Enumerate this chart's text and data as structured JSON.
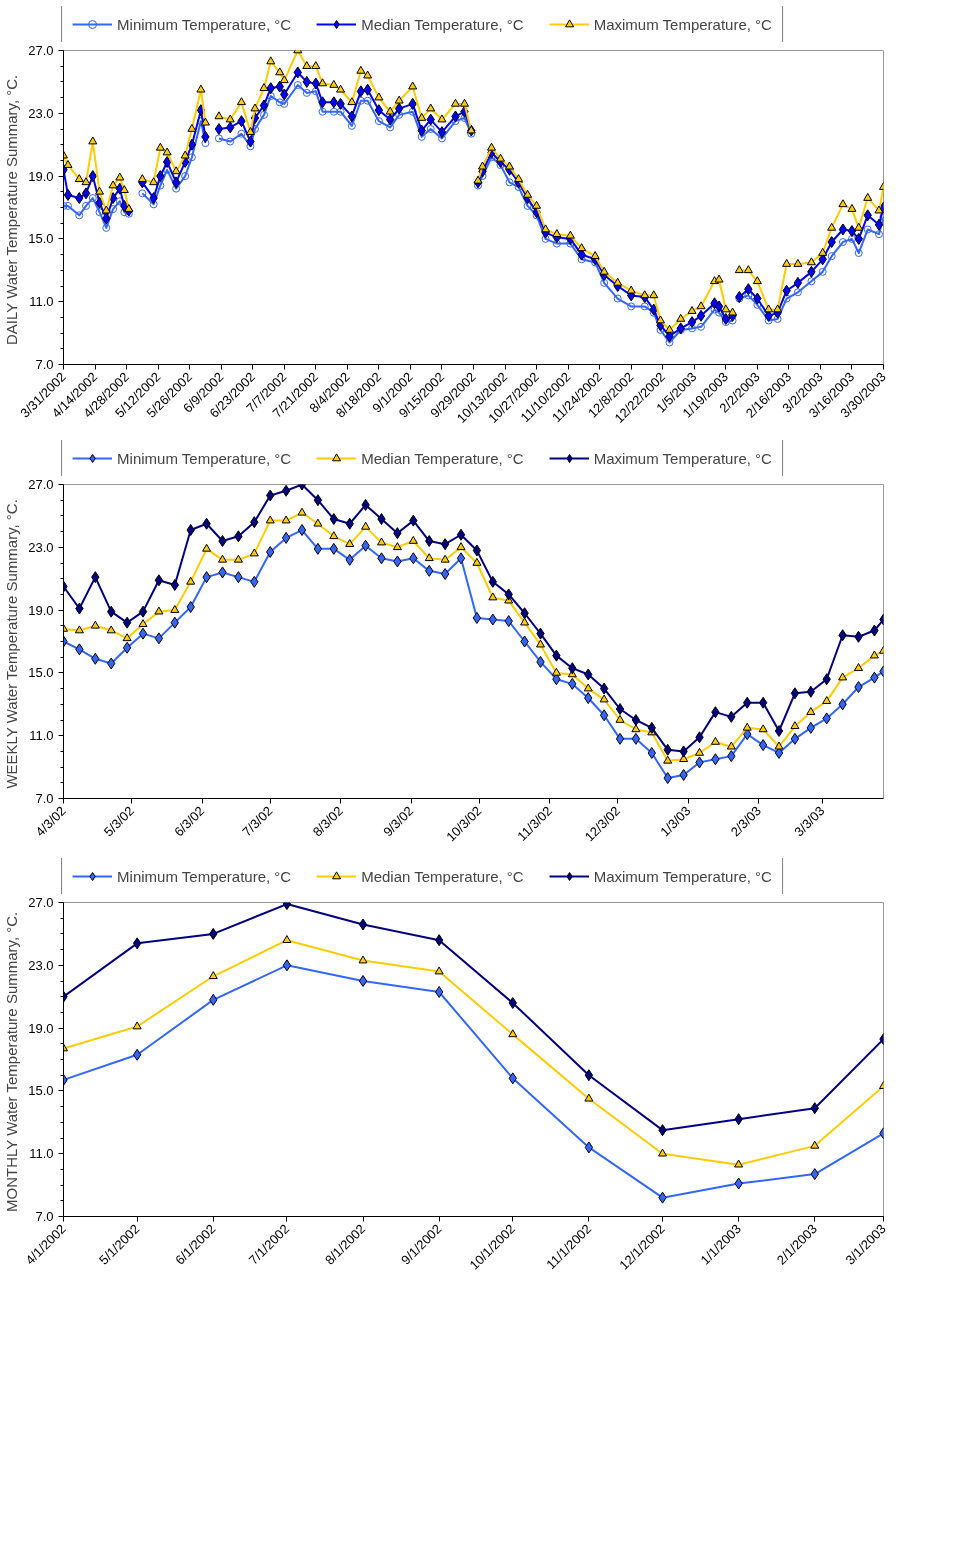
{
  "chart_data": [
    {
      "type": "line",
      "ylabel": "DAILY  Water Temperature Summary, °C.",
      "legend": "top",
      "grid": false,
      "x": [
        "2002-03-31",
        "2002-04-02",
        "2002-04-07",
        "2002-04-10",
        "2002-04-13",
        "2002-04-16",
        "2002-04-19",
        "2002-04-22",
        "2002-04-25",
        "2002-04-27",
        "2002-04-29",
        "2002-05-02",
        "2002-05-05",
        "2002-05-10",
        "2002-05-13",
        "2002-05-16",
        "2002-05-20",
        "2002-05-24",
        "2002-05-27",
        "2002-05-31",
        "2002-06-02",
        "2002-06-05",
        "2002-06-08",
        "2002-06-13",
        "2002-06-18",
        "2002-06-22",
        "2002-06-24",
        "2002-06-28",
        "2002-07-01",
        "2002-07-05",
        "2002-07-07",
        "2002-07-13",
        "2002-07-17",
        "2002-07-21",
        "2002-07-24",
        "2002-07-29",
        "2002-08-01",
        "2002-08-06",
        "2002-08-10",
        "2002-08-13",
        "2002-08-18",
        "2002-08-23",
        "2002-08-27",
        "2002-09-02",
        "2002-09-06",
        "2002-09-10",
        "2002-09-15",
        "2002-09-21",
        "2002-09-25",
        "2002-09-28",
        "2002-09-30",
        "2002-10-01",
        "2002-10-03",
        "2002-10-07",
        "2002-10-11",
        "2002-10-15",
        "2002-10-19",
        "2002-10-23",
        "2002-10-27",
        "2002-10-31",
        "2002-11-05",
        "2002-11-11",
        "2002-11-16",
        "2002-11-22",
        "2002-11-26",
        "2002-12-02",
        "2002-12-08",
        "2002-12-14",
        "2002-12-18",
        "2002-12-21",
        "2002-12-25",
        "2002-12-30",
        "2003-01-04",
        "2003-01-08",
        "2003-01-14",
        "2003-01-16",
        "2003-01-19",
        "2003-01-22",
        "2003-01-23",
        "2003-01-25",
        "2003-01-29",
        "2003-02-02",
        "2003-02-07",
        "2003-02-11",
        "2003-02-15",
        "2003-02-20",
        "2003-02-26",
        "2003-03-03",
        "2003-03-07",
        "2003-03-12",
        "2003-03-16",
        "2003-03-19",
        "2003-03-23",
        "2003-03-28",
        "2003-03-30"
      ],
      "series": [
        {
          "name": "Minimum Temperature, °C",
          "color": "#3366ff",
          "marker": "circle",
          "values": [
            17.1,
            17.1,
            16.5,
            17.1,
            17.6,
            16.7,
            15.7,
            16.9,
            17.4,
            16.7,
            16.6,
            null,
            17.9,
            17.2,
            18.4,
            19.4,
            18.2,
            19.0,
            20.2,
            22.5,
            21.1,
            null,
            21.4,
            21.2,
            21.7,
            20.9,
            22.0,
            22.9,
            24.1,
            23.7,
            23.6,
            24.8,
            24.3,
            24.4,
            23.1,
            23.1,
            23.1,
            22.2,
            23.8,
            23.8,
            22.5,
            22.1,
            22.9,
            23.1,
            21.5,
            22.0,
            21.4,
            22.5,
            22.7,
            21.7,
            null,
            18.4,
            19.0,
            20.2,
            19.7,
            18.6,
            18.3,
            17.1,
            16.5,
            15.0,
            14.7,
            14.7,
            13.7,
            13.5,
            12.2,
            11.2,
            10.7,
            10.7,
            10.3,
            9.2,
            8.4,
            9.2,
            9.3,
            9.4,
            10.5,
            10.3,
            9.7,
            9.8,
            null,
            11.2,
            11.4,
            10.8,
            9.8,
            9.9,
            11.2,
            11.6,
            12.3,
            12.9,
            13.9,
            14.8,
            15.0,
            14.1,
            15.6,
            15.3,
            16.4
          ]
        },
        {
          "name": "Median Temperature, °C",
          "color": "#0000ff",
          "marker": "diamond",
          "values": [
            19.4,
            17.8,
            17.6,
            17.9,
            19.0,
            17.3,
            16.3,
            17.6,
            18.2,
            17.1,
            16.8,
            null,
            18.6,
            17.6,
            19.0,
            19.9,
            18.6,
            19.9,
            21.0,
            23.2,
            21.5,
            null,
            22.0,
            22.1,
            22.5,
            21.2,
            22.7,
            23.5,
            24.6,
            24.7,
            24.2,
            25.6,
            25.0,
            24.9,
            23.7,
            23.7,
            23.6,
            22.8,
            24.4,
            24.5,
            23.2,
            22.6,
            23.3,
            23.6,
            21.9,
            22.6,
            21.8,
            22.8,
            23.1,
            21.9,
            null,
            18.6,
            19.3,
            20.5,
            19.9,
            19.4,
            18.6,
            17.6,
            16.7,
            15.4,
            15.1,
            15.0,
            14.0,
            13.7,
            12.7,
            12.0,
            11.4,
            11.3,
            10.5,
            9.5,
            8.8,
            9.3,
            9.7,
            10.1,
            10.9,
            10.7,
            9.9,
            10.1,
            null,
            11.3,
            11.8,
            11.2,
            10.1,
            10.3,
            11.7,
            12.2,
            12.9,
            13.7,
            14.8,
            15.6,
            15.5,
            15.0,
            16.5,
            15.9,
            17.0
          ]
        },
        {
          "name": "Maximum Temperature, °C",
          "color": "#ffcc00",
          "marker": "triangle",
          "values": [
            20.3,
            19.7,
            18.8,
            18.6,
            21.2,
            18.0,
            16.8,
            18.4,
            18.9,
            18.1,
            16.9,
            null,
            18.8,
            18.6,
            20.8,
            20.5,
            19.3,
            20.3,
            22.0,
            24.5,
            22.4,
            null,
            22.8,
            22.6,
            23.7,
            21.8,
            23.3,
            24.6,
            26.3,
            25.6,
            25.1,
            27.0,
            26.0,
            26.0,
            24.9,
            24.8,
            24.5,
            23.7,
            25.7,
            25.4,
            24.0,
            23.1,
            23.8,
            24.7,
            22.7,
            23.3,
            22.6,
            23.6,
            23.6,
            21.9,
            null,
            18.7,
            19.6,
            20.8,
            20.1,
            19.6,
            18.8,
            17.8,
            17.1,
            15.6,
            15.3,
            15.2,
            14.4,
            13.9,
            12.9,
            12.2,
            11.7,
            11.4,
            11.4,
            9.8,
            9.2,
            9.9,
            10.4,
            10.7,
            12.3,
            12.4,
            10.5,
            10.3,
            null,
            13.0,
            13.0,
            12.3,
            10.5,
            10.5,
            13.4,
            13.4,
            13.5,
            14.1,
            15.7,
            17.2,
            16.9,
            15.7,
            17.6,
            16.8,
            18.3
          ]
        }
      ],
      "ylim": [
        7,
        27
      ],
      "yticks": [
        {
          "value": 7,
          "label": "7.0"
        },
        {
          "value": 11,
          "label": "11.0"
        },
        {
          "value": 15,
          "label": "15.0"
        },
        {
          "value": 19,
          "label": "19.0"
        },
        {
          "value": 23,
          "label": "23.0"
        },
        {
          "value": 27,
          "label": "27.0"
        }
      ],
      "xlim": [
        "2002-03-31",
        "2003-03-30"
      ],
      "xticks": [
        {
          "value": "2002-03-31",
          "label": "3/31/2002"
        },
        {
          "value": "2002-04-14",
          "label": "4/14/2002"
        },
        {
          "value": "2002-04-28",
          "label": "4/28/2002"
        },
        {
          "value": "2002-05-12",
          "label": "5/12/2002"
        },
        {
          "value": "2002-05-26",
          "label": "5/26/2002"
        },
        {
          "value": "2002-06-09",
          "label": "6/9/2002"
        },
        {
          "value": "2002-06-23",
          "label": "6/23/2002"
        },
        {
          "value": "2002-07-07",
          "label": "7/7/2002"
        },
        {
          "value": "2002-07-21",
          "label": "7/21/2002"
        },
        {
          "value": "2002-08-04",
          "label": "8/4/2002"
        },
        {
          "value": "2002-08-18",
          "label": "8/18/2002"
        },
        {
          "value": "2002-09-01",
          "label": "9/1/2002"
        },
        {
          "value": "2002-09-15",
          "label": "9/15/2002"
        },
        {
          "value": "2002-09-29",
          "label": "9/29/2002"
        },
        {
          "value": "2002-10-13",
          "label": "10/13/2002"
        },
        {
          "value": "2002-10-27",
          "label": "10/27/2002"
        },
        {
          "value": "2002-11-10",
          "label": "11/10/2002"
        },
        {
          "value": "2002-11-24",
          "label": "11/24/2002"
        },
        {
          "value": "2002-12-08",
          "label": "12/8/2002"
        },
        {
          "value": "2002-12-22",
          "label": "12/22/2002"
        },
        {
          "value": "2003-01-05",
          "label": "1/5/2003"
        },
        {
          "value": "2003-01-19",
          "label": "1/19/2003"
        },
        {
          "value": "2003-02-02",
          "label": "2/2/2003"
        },
        {
          "value": "2003-02-16",
          "label": "2/16/2003"
        },
        {
          "value": "2003-03-02",
          "label": "3/2/2003"
        },
        {
          "value": "2003-03-16",
          "label": "3/16/2003"
        },
        {
          "value": "2003-03-30",
          "label": "3/30/2003"
        }
      ]
    },
    {
      "type": "line",
      "ylabel": "WEEKLY  Water Temperature Summary, °C.",
      "legend": "top",
      "grid": false,
      "x": [
        "2002-04-03",
        "2002-04-10",
        "2002-04-17",
        "2002-04-24",
        "2002-05-01",
        "2002-05-08",
        "2002-05-15",
        "2002-05-22",
        "2002-05-29",
        "2002-06-05",
        "2002-06-12",
        "2002-06-19",
        "2002-06-26",
        "2002-07-03",
        "2002-07-10",
        "2002-07-17",
        "2002-07-24",
        "2002-07-31",
        "2002-08-07",
        "2002-08-14",
        "2002-08-21",
        "2002-08-28",
        "2002-09-04",
        "2002-09-11",
        "2002-09-18",
        "2002-09-25",
        "2002-10-02",
        "2002-10-09",
        "2002-10-16",
        "2002-10-23",
        "2002-10-30",
        "2002-11-06",
        "2002-11-13",
        "2002-11-20",
        "2002-11-27",
        "2002-12-04",
        "2002-12-11",
        "2002-12-18",
        "2002-12-25",
        "2003-01-01",
        "2003-01-08",
        "2003-01-15",
        "2003-01-22",
        "2003-01-29",
        "2003-02-05",
        "2003-02-12",
        "2003-02-19",
        "2003-02-26",
        "2003-03-05",
        "2003-03-12",
        "2003-03-19",
        "2003-03-26",
        "2003-03-30"
      ],
      "series": [
        {
          "name": "Minimum Temperature, °C",
          "color": "#3366ff",
          "marker": "diamond",
          "values": [
            17.0,
            16.5,
            15.9,
            15.6,
            16.6,
            17.5,
            17.2,
            18.2,
            19.2,
            21.1,
            21.4,
            21.1,
            20.8,
            22.7,
            23.6,
            24.1,
            22.9,
            22.9,
            22.2,
            23.1,
            22.3,
            22.1,
            22.3,
            21.5,
            21.3,
            22.3,
            18.5,
            18.4,
            18.3,
            17.0,
            15.7,
            14.6,
            14.3,
            13.4,
            12.3,
            10.8,
            10.8,
            9.9,
            8.3,
            8.5,
            9.3,
            9.5,
            9.7,
            11.1,
            10.4,
            9.9,
            10.8,
            11.5,
            12.1,
            13.0,
            14.1,
            14.7,
            15.1
          ]
        },
        {
          "name": "Median Temperature, °C",
          "color": "#ffcc00",
          "marker": "triangle",
          "values": [
            17.8,
            17.7,
            18.0,
            17.7,
            17.2,
            18.1,
            18.9,
            19.0,
            20.8,
            22.9,
            22.2,
            22.2,
            22.6,
            24.7,
            24.7,
            25.2,
            24.5,
            23.7,
            23.2,
            24.3,
            23.3,
            23.0,
            23.4,
            22.3,
            22.2,
            23.0,
            22.0,
            19.8,
            19.6,
            18.2,
            16.8,
            15.0,
            14.9,
            14.0,
            13.3,
            12.0,
            11.4,
            11.2,
            9.4,
            9.5,
            9.9,
            10.6,
            10.3,
            11.5,
            11.4,
            10.3,
            11.6,
            12.5,
            13.2,
            14.7,
            15.3,
            16.1,
            16.4
          ]
        },
        {
          "name": "Maximum Temperature, °C",
          "color": "#000080",
          "marker": "diamond",
          "values": [
            20.5,
            19.1,
            21.1,
            18.9,
            18.2,
            18.9,
            20.9,
            20.6,
            24.1,
            24.5,
            23.4,
            23.7,
            24.6,
            26.3,
            26.6,
            27.0,
            26.0,
            24.8,
            24.5,
            25.7,
            24.8,
            23.9,
            24.7,
            23.4,
            23.2,
            23.8,
            22.8,
            20.8,
            20.0,
            18.8,
            17.5,
            16.1,
            15.3,
            14.9,
            14.0,
            12.7,
            12.0,
            11.5,
            10.1,
            10.0,
            10.9,
            12.5,
            12.2,
            13.1,
            13.1,
            11.3,
            13.7,
            13.8,
            14.6,
            17.4,
            17.3,
            17.7,
            18.4
          ]
        }
      ],
      "ylim": [
        7,
        27
      ],
      "yticks": [
        {
          "value": 7,
          "label": "7.0"
        },
        {
          "value": 11,
          "label": "11.0"
        },
        {
          "value": 15,
          "label": "15.0"
        },
        {
          "value": 19,
          "label": "19.0"
        },
        {
          "value": 23,
          "label": "23.0"
        },
        {
          "value": 27,
          "label": "27.0"
        }
      ],
      "xlim": [
        "2002-04-03",
        "2003-03-30"
      ],
      "xticks": [
        {
          "value": "2002-04-03",
          "label": "4/3/02"
        },
        {
          "value": "2002-05-03",
          "label": "5/3/02"
        },
        {
          "value": "2002-06-03",
          "label": "6/3/02"
        },
        {
          "value": "2002-07-03",
          "label": "7/3/02"
        },
        {
          "value": "2002-08-03",
          "label": "8/3/02"
        },
        {
          "value": "2002-09-03",
          "label": "9/3/02"
        },
        {
          "value": "2002-10-03",
          "label": "10/3/02"
        },
        {
          "value": "2002-11-03",
          "label": "11/3/02"
        },
        {
          "value": "2002-12-03",
          "label": "12/3/02"
        },
        {
          "value": "2003-01-03",
          "label": "1/3/03"
        },
        {
          "value": "2003-02-03",
          "label": "2/3/03"
        },
        {
          "value": "2003-03-03",
          "label": "3/3/03"
        }
      ]
    },
    {
      "type": "line",
      "ylabel": "MONTHLY  Water Temperature Summary, °C.",
      "legend": "top",
      "grid": false,
      "x": [
        "2002-04-01",
        "2002-05-01",
        "2002-06-01",
        "2002-07-01",
        "2002-08-01",
        "2002-09-01",
        "2002-10-01",
        "2002-11-01",
        "2002-12-01",
        "2003-01-01",
        "2003-02-01",
        "2003-03-01"
      ],
      "series": [
        {
          "name": "Minimum Temperature, °C",
          "color": "#3366ff",
          "marker": "diamond",
          "values": [
            15.7,
            17.3,
            20.8,
            23.0,
            22.0,
            21.3,
            15.8,
            11.4,
            8.2,
            9.1,
            9.7,
            12.3
          ]
        },
        {
          "name": "Median Temperature, °C",
          "color": "#ffcc00",
          "marker": "triangle",
          "values": [
            17.7,
            19.1,
            22.3,
            24.6,
            23.3,
            22.6,
            18.6,
            14.5,
            11.0,
            10.3,
            11.5,
            15.3
          ]
        },
        {
          "name": "Maximum Temperature, °C",
          "color": "#000080",
          "marker": "diamond",
          "values": [
            21.0,
            24.4,
            25.0,
            26.9,
            25.6,
            24.6,
            20.6,
            16.0,
            12.5,
            13.2,
            13.9,
            18.3
          ]
        }
      ],
      "ylim": [
        7,
        27
      ],
      "yticks": [
        {
          "value": 7,
          "label": "7.0"
        },
        {
          "value": 11,
          "label": "11.0"
        },
        {
          "value": 15,
          "label": "15.0"
        },
        {
          "value": 19,
          "label": "19.0"
        },
        {
          "value": 23,
          "label": "23.0"
        },
        {
          "value": 27,
          "label": "27.0"
        }
      ],
      "xlim": [
        "2002-04-01",
        "2003-03-01"
      ],
      "xticks": [
        {
          "value": "2002-04-01",
          "label": "4/1/2002"
        },
        {
          "value": "2002-05-01",
          "label": "5/1/2002"
        },
        {
          "value": "2002-06-01",
          "label": "6/1/2002"
        },
        {
          "value": "2002-07-01",
          "label": "7/1/2002"
        },
        {
          "value": "2002-08-01",
          "label": "8/1/2002"
        },
        {
          "value": "2002-09-01",
          "label": "9/1/2002"
        },
        {
          "value": "2002-10-01",
          "label": "10/1/2002"
        },
        {
          "value": "2002-11-01",
          "label": "11/1/2002"
        },
        {
          "value": "2002-12-01",
          "label": "12/1/2002"
        },
        {
          "value": "2003-01-01",
          "label": "1/1/2003"
        },
        {
          "value": "2003-02-01",
          "label": "2/1/2003"
        },
        {
          "value": "2003-03-01",
          "label": "3/1/2003"
        }
      ]
    }
  ]
}
